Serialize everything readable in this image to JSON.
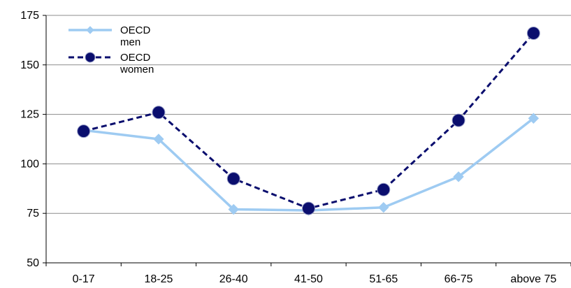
{
  "chart_data": {
    "type": "line",
    "title": "",
    "xlabel": "",
    "ylabel": "",
    "categories": [
      "0-17",
      "18-25",
      "26-40",
      "41-50",
      "51-65",
      "66-75",
      "above 75"
    ],
    "ylim": [
      50,
      175
    ],
    "yticks": [
      50,
      75,
      100,
      125,
      150,
      175
    ],
    "grid": "horizontal",
    "legend_position": "top-left",
    "series": [
      {
        "name": "OECD men",
        "name_lines": [
          "OECD",
          "men"
        ],
        "values": [
          117,
          112.5,
          77,
          76.5,
          78,
          93.5,
          123
        ],
        "color": "#9ecbf2",
        "line_style": "solid",
        "marker": "diamond"
      },
      {
        "name": "OECD women",
        "name_lines": [
          "OECD",
          "women"
        ],
        "values": [
          116.5,
          126,
          92.5,
          77.5,
          87,
          122,
          166
        ],
        "color": "#0a0e6e",
        "line_style": "dashed",
        "marker": "circle"
      }
    ]
  }
}
